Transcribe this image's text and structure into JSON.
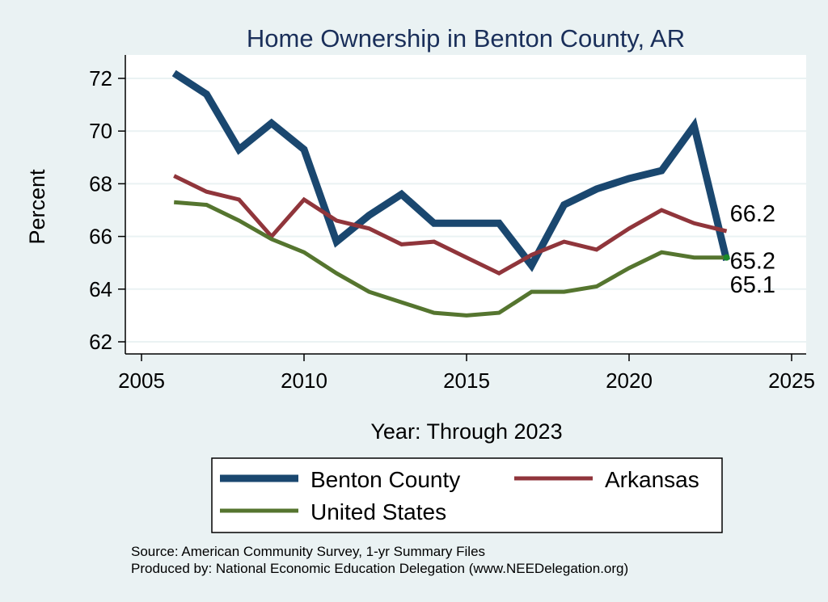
{
  "chart_data": {
    "type": "line",
    "title": "Home Ownership in Benton County, AR",
    "xlabel": "Year: Through 2023",
    "ylabel": "Percent",
    "xlim": [
      2005,
      2025
    ],
    "ylim": [
      62,
      72.5
    ],
    "x_ticks": [
      2005,
      2010,
      2015,
      2020,
      2025
    ],
    "y_ticks": [
      62,
      64,
      66,
      68,
      70,
      72
    ],
    "grid": true,
    "legend_position": "bottom",
    "x": [
      2006,
      2007,
      2008,
      2009,
      2010,
      2011,
      2012,
      2013,
      2014,
      2015,
      2016,
      2017,
      2018,
      2019,
      2020,
      2021,
      2022,
      2023
    ],
    "series": [
      {
        "name": "Benton County",
        "color": "#1a476f",
        "values": [
          72.2,
          71.4,
          69.3,
          70.3,
          69.3,
          65.8,
          66.8,
          67.6,
          66.5,
          66.5,
          66.5,
          64.9,
          67.2,
          67.8,
          68.2,
          68.5,
          70.2,
          65.1
        ]
      },
      {
        "name": "Arkansas",
        "color": "#90353b",
        "values": [
          68.3,
          67.7,
          67.4,
          66.0,
          67.4,
          66.6,
          66.3,
          65.7,
          65.8,
          65.2,
          64.6,
          65.3,
          65.8,
          65.5,
          66.3,
          67.0,
          66.5,
          66.2
        ]
      },
      {
        "name": "United States",
        "color": "#55752f",
        "values": [
          67.3,
          67.2,
          66.6,
          65.9,
          65.4,
          64.6,
          63.9,
          63.5,
          63.1,
          63.0,
          63.1,
          63.9,
          63.9,
          64.1,
          64.8,
          65.4,
          65.2,
          65.2
        ]
      }
    ],
    "end_labels": [
      {
        "series": "Arkansas",
        "text": "66.2"
      },
      {
        "series": "United States",
        "text": "65.2"
      },
      {
        "series": "Benton County",
        "text": "65.1"
      }
    ],
    "notes": [
      "Source: American Community Survey, 1-yr Summary Files",
      "Produced by: National Economic Education Delegation (www.NEEDelegation.org)"
    ]
  }
}
